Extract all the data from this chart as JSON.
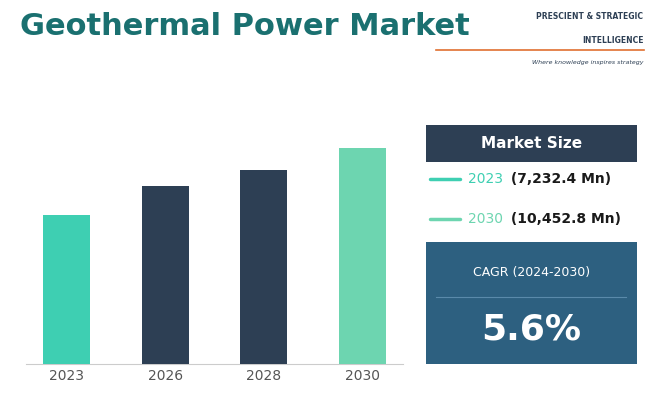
{
  "title": "Geothermal Power Market",
  "categories": [
    "2023",
    "2026",
    "2028",
    "2030"
  ],
  "values": [
    7232.4,
    8600,
    9400,
    10452.8
  ],
  "bar_colors": [
    "#3ecfb2",
    "#2d3f54",
    "#2d3f54",
    "#6dd5b0"
  ],
  "background_color": "#ffffff",
  "title_fontsize": 22,
  "title_color": "#1a7070",
  "legend_header": "Market Size",
  "legend_header_bg": "#2d3f54",
  "legend_header_color": "#ffffff",
  "legend_2023_year": "2023",
  "legend_2023_value": " (7,232.4 Mn)",
  "legend_2030_year": "2030",
  "legend_2030_value": " (10,452.8 Mn)",
  "legend_2023_color": "#3ecfb2",
  "legend_2030_color": "#6dd5b0",
  "legend_year_color": "#3ecfb2",
  "legend_value_color": "#1a1a1a",
  "cagr_box_bg": "#2d6080",
  "cagr_label": "CAGR (2024-2030)",
  "cagr_value": "5.6%",
  "cagr_label_color": "#ffffff",
  "cagr_value_color": "#ffffff",
  "grid_color": "#e8e8e8",
  "ylim": [
    0,
    12000
  ],
  "axis_tick_color": "#555555",
  "axis_tick_fontsize": 10,
  "logo_line_color": "#e07030",
  "logo_text1": "PRESCIENT",
  "logo_text2": "INTELLIGENCE",
  "logo_sub": "Where knowledge inspires strategy"
}
